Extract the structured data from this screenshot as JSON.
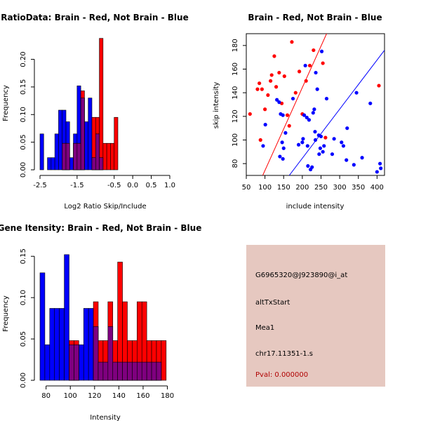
{
  "colors": {
    "brain": "#ff0000",
    "not_brain": "#0000ff",
    "overlap": "#7f007f",
    "info_bg": "#e6c8c0",
    "pval": "#b00000"
  },
  "chart_data": [
    {
      "id": "ratio",
      "type": "bar",
      "title": "RatioData: Brain - Red, Not Brain - Blue",
      "xlabel": "Log2 Ratio Skip/Include",
      "ylabel": "Frequency",
      "xlim": [
        -2.5,
        1.0
      ],
      "ylim": [
        0,
        0.235
      ],
      "xticks": [
        "-2.5",
        "-1.5",
        "-0.5",
        "0.0",
        "0.5",
        "1.0"
      ],
      "xtick_values": [
        -2.5,
        -1.5,
        -0.5,
        0.0,
        0.5,
        1.0
      ],
      "yticks": [
        "0.00",
        "0.05",
        "0.10",
        "0.15",
        "0.20"
      ],
      "ytick_values": [
        0.0,
        0.05,
        0.1,
        0.15,
        0.2
      ],
      "bin_width": 0.1,
      "series": [
        {
          "name": "Not Brain",
          "color": "blue",
          "bins": [
            [
              -2.5,
              0.065
            ],
            [
              -2.3,
              0.022
            ],
            [
              -2.2,
              0.022
            ],
            [
              -2.1,
              0.065
            ],
            [
              -2.0,
              0.108
            ],
            [
              -1.9,
              0.108
            ],
            [
              -1.8,
              0.087
            ],
            [
              -1.7,
              0.022
            ],
            [
              -1.6,
              0.065
            ],
            [
              -1.5,
              0.152
            ],
            [
              -1.4,
              0.13
            ],
            [
              -1.3,
              0.087
            ],
            [
              -1.2,
              0.13
            ],
            [
              -1.1,
              0.022
            ],
            [
              -1.0,
              0.065
            ],
            [
              -0.9,
              0.022
            ]
          ]
        },
        {
          "name": "Brain",
          "color": "red",
          "bins": [
            [
              -1.9,
              0.048
            ],
            [
              -1.8,
              0.048
            ],
            [
              -1.6,
              0.048
            ],
            [
              -1.5,
              0.048
            ],
            [
              -1.4,
              0.143
            ],
            [
              -1.1,
              0.095
            ],
            [
              -1.0,
              0.095
            ],
            [
              -0.9,
              0.238
            ],
            [
              -0.8,
              0.048
            ],
            [
              -0.7,
              0.048
            ],
            [
              -0.6,
              0.048
            ],
            [
              -0.5,
              0.095
            ]
          ]
        }
      ]
    },
    {
      "id": "scatter",
      "type": "scatter",
      "title": "Brain - Red, Not Brain - Blue",
      "xlabel": "include intensity",
      "ylabel": "skip intensity",
      "xlim": [
        50,
        420
      ],
      "ylim": [
        70,
        190
      ],
      "xticks": [
        "50",
        "100",
        "150",
        "200",
        "250",
        "300",
        "350",
        "400"
      ],
      "xtick_values": [
        50,
        100,
        150,
        200,
        250,
        300,
        350,
        400
      ],
      "yticks": [
        "80",
        "100",
        "120",
        "140",
        "160",
        "180"
      ],
      "ytick_values": [
        80,
        100,
        120,
        140,
        160,
        180
      ],
      "series": [
        {
          "name": "Brain",
          "color": "red",
          "points": [
            [
              60,
              122
            ],
            [
              80,
              143
            ],
            [
              85,
              148
            ],
            [
              88,
              100
            ],
            [
              92,
              143
            ],
            [
              100,
              126
            ],
            [
              108,
              138
            ],
            [
              115,
              150
            ],
            [
              118,
              155
            ],
            [
              125,
              171
            ],
            [
              130,
              145
            ],
            [
              138,
              157
            ],
            [
              145,
              131
            ],
            [
              152,
              154
            ],
            [
              160,
              121
            ],
            [
              165,
              112
            ],
            [
              172,
              183
            ],
            [
              182,
              140
            ],
            [
              192,
              158
            ],
            [
              200,
              122
            ],
            [
              210,
              150
            ],
            [
              220,
              163
            ],
            [
              230,
              176
            ],
            [
              255,
              165
            ],
            [
              262,
              102
            ],
            [
              405,
              146
            ]
          ]
        },
        {
          "name": "Not Brain",
          "color": "blue",
          "points": [
            [
              95,
              95
            ],
            [
              101,
              113
            ],
            [
              132,
              134
            ],
            [
              138,
              132
            ],
            [
              140,
              86
            ],
            [
              142,
              122
            ],
            [
              146,
              98
            ],
            [
              148,
              121
            ],
            [
              148,
              84
            ],
            [
              150,
              93
            ],
            [
              155,
              106
            ],
            [
              175,
              135
            ],
            [
              190,
              96
            ],
            [
              200,
              98
            ],
            [
              202,
              101
            ],
            [
              205,
              121
            ],
            [
              208,
              163
            ],
            [
              212,
              119
            ],
            [
              214,
              95
            ],
            [
              215,
              78
            ],
            [
              218,
              117
            ],
            [
              222,
              75
            ],
            [
              226,
              77
            ],
            [
              229,
              123
            ],
            [
              232,
              126
            ],
            [
              234,
              107
            ],
            [
              235,
              100
            ],
            [
              236,
              157
            ],
            [
              240,
              143
            ],
            [
              244,
              104
            ],
            [
              245,
              88
            ],
            [
              248,
              93
            ],
            [
              250,
              103
            ],
            [
              252,
              175
            ],
            [
              255,
              90
            ],
            [
              258,
              95
            ],
            [
              265,
              135
            ],
            [
              280,
              88
            ],
            [
              285,
              101
            ],
            [
              305,
              98
            ],
            [
              310,
              95
            ],
            [
              318,
              83
            ],
            [
              320,
              110
            ],
            [
              338,
              79
            ],
            [
              345,
              140
            ],
            [
              360,
              85
            ],
            [
              382,
              131
            ],
            [
              400,
              73
            ],
            [
              408,
              80
            ],
            [
              410,
              76
            ]
          ]
        }
      ],
      "lines": [
        {
          "name": "Brain fit",
          "color": "red",
          "x1": 94,
          "y1": 70,
          "x2": 265,
          "y2": 190
        },
        {
          "name": "Not Brain fit",
          "color": "blue",
          "x1": 165,
          "y1": 70,
          "x2": 420,
          "y2": 176
        }
      ]
    },
    {
      "id": "intensity",
      "type": "bar",
      "title": "Gene Itensity: Brain - Red, Not Brain - Blue",
      "xlabel": "Intensity",
      "ylabel": "Frequency",
      "xlim": [
        75,
        182
      ],
      "ylim": [
        0,
        0.157
      ],
      "xticks": [
        "80",
        "100",
        "120",
        "140",
        "160",
        "180"
      ],
      "xtick_values": [
        80,
        100,
        120,
        140,
        160,
        180
      ],
      "yticks": [
        "0.00",
        "0.05",
        "0.10",
        "0.15"
      ],
      "ytick_values": [
        0.0,
        0.05,
        0.1,
        0.15
      ],
      "bin_width": 4,
      "series": [
        {
          "name": "Not Brain",
          "color": "blue",
          "bins": [
            [
              75,
              0.13
            ],
            [
              79,
              0.043
            ],
            [
              83,
              0.087
            ],
            [
              87,
              0.087
            ],
            [
              91,
              0.087
            ],
            [
              95,
              0.152
            ],
            [
              99,
              0.043
            ],
            [
              103,
              0.043
            ],
            [
              107,
              0.043
            ],
            [
              111,
              0.087
            ],
            [
              115,
              0.087
            ],
            [
              119,
              0.065
            ],
            [
              123,
              0.022
            ],
            [
              127,
              0.022
            ],
            [
              131,
              0.065
            ],
            [
              135,
              0.022
            ],
            [
              139,
              0.022
            ],
            [
              143,
              0.022
            ],
            [
              147,
              0.022
            ],
            [
              151,
              0.022
            ],
            [
              155,
              0.022
            ],
            [
              159,
              0.022
            ],
            [
              163,
              0.022
            ],
            [
              167,
              0.022
            ],
            [
              171,
              0.022
            ]
          ]
        },
        {
          "name": "Brain",
          "color": "red",
          "bins": [
            [
              99,
              0.048
            ],
            [
              103,
              0.048
            ],
            [
              119,
              0.095
            ],
            [
              123,
              0.048
            ],
            [
              127,
              0.048
            ],
            [
              131,
              0.095
            ],
            [
              135,
              0.048
            ],
            [
              139,
              0.143
            ],
            [
              143,
              0.095
            ],
            [
              147,
              0.048
            ],
            [
              151,
              0.048
            ],
            [
              155,
              0.095
            ],
            [
              159,
              0.095
            ],
            [
              163,
              0.048
            ],
            [
              167,
              0.048
            ],
            [
              171,
              0.048
            ],
            [
              175,
              0.048
            ]
          ]
        }
      ]
    }
  ],
  "info": {
    "probe": "G6965320@J923890@i_at",
    "event": "altTxStart",
    "gene": "Mea1",
    "location": "chr17.11351-1.s",
    "pval": "Pval: 0.000000"
  }
}
